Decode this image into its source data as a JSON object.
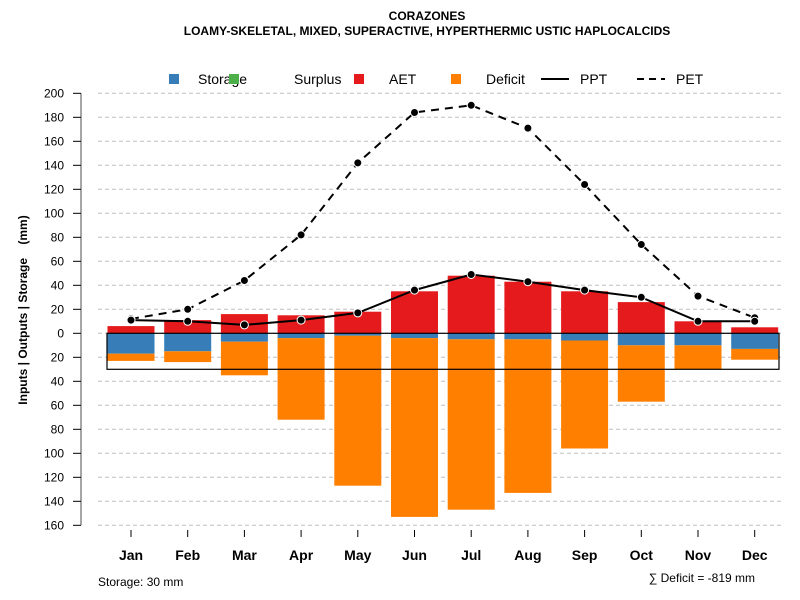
{
  "chart_data": {
    "type": "bar",
    "title": "CORAZONES",
    "subtitle": "LOAMY-SKELETAL, MIXED, SUPERACTIVE, HYPERTHERMIC USTIC HAPLOCALCIDS",
    "xlabel": "",
    "ylabel": "Inputs | Outputs | Storage    (mm)",
    "ylim": [
      -160,
      200
    ],
    "yticks": [
      200,
      180,
      160,
      140,
      120,
      100,
      80,
      60,
      40,
      20,
      0,
      -20,
      -40,
      -60,
      -80,
      -100,
      -120,
      -140,
      -160
    ],
    "ytick_labels": [
      "200",
      "180",
      "160",
      "140",
      "120",
      "100",
      "80",
      "60",
      "40",
      "20",
      "0",
      "20",
      "40",
      "60",
      "80",
      "100",
      "120",
      "140",
      "160"
    ],
    "grid": true,
    "legend_position": "top",
    "categories": [
      "Jan",
      "Feb",
      "Mar",
      "Apr",
      "May",
      "Jun",
      "Jul",
      "Aug",
      "Sep",
      "Oct",
      "Nov",
      "Dec"
    ],
    "legend": [
      {
        "name": "Storage",
        "type": "box",
        "color": "#377EB8"
      },
      {
        "name": "Surplus",
        "type": "box",
        "color": "#4DAF4A"
      },
      {
        "name": "AET",
        "type": "box",
        "color": "#E41A1C"
      },
      {
        "name": "Deficit",
        "type": "box",
        "color": "#FF7F00"
      },
      {
        "name": "PPT",
        "type": "solid-line",
        "color": "#000000"
      },
      {
        "name": "PET",
        "type": "dashed-line",
        "color": "#000000"
      }
    ],
    "series": [
      {
        "name": "AET",
        "kind": "bar-up",
        "color": "#E41A1C",
        "values": [
          6,
          11,
          16,
          15,
          18,
          35,
          48,
          43,
          35,
          26,
          10,
          5
        ]
      },
      {
        "name": "Surplus",
        "kind": "bar-up",
        "color": "#4DAF4A",
        "values": [
          0,
          0,
          0,
          0,
          0,
          0,
          0,
          0,
          0,
          0,
          0,
          0
        ]
      },
      {
        "name": "Storage",
        "kind": "bar-down",
        "color": "#377EB8",
        "values": [
          17,
          15,
          7,
          4,
          2,
          4,
          5,
          5,
          6,
          10,
          10,
          13
        ]
      },
      {
        "name": "Deficit",
        "kind": "bar-down-stacked",
        "color": "#FF7F00",
        "values": [
          -6,
          -9,
          -28,
          -68,
          -125,
          -149,
          -142,
          -128,
          -90,
          -47,
          -20,
          -9
        ]
      },
      {
        "name": "PPT",
        "kind": "line",
        "color": "#000000",
        "values": [
          11,
          10,
          7,
          11,
          17,
          36,
          49,
          43,
          36,
          30,
          10,
          10
        ]
      },
      {
        "name": "PET",
        "kind": "dashed-line",
        "color": "#000000",
        "values": [
          12,
          20,
          44,
          82,
          142,
          184,
          190,
          171,
          124,
          74,
          31,
          13
        ]
      }
    ],
    "storage_capacity_box": 30,
    "annotations": {
      "storage": "Storage: 30 mm",
      "deficit_sum": "∑ Deficit = -819 mm"
    }
  }
}
